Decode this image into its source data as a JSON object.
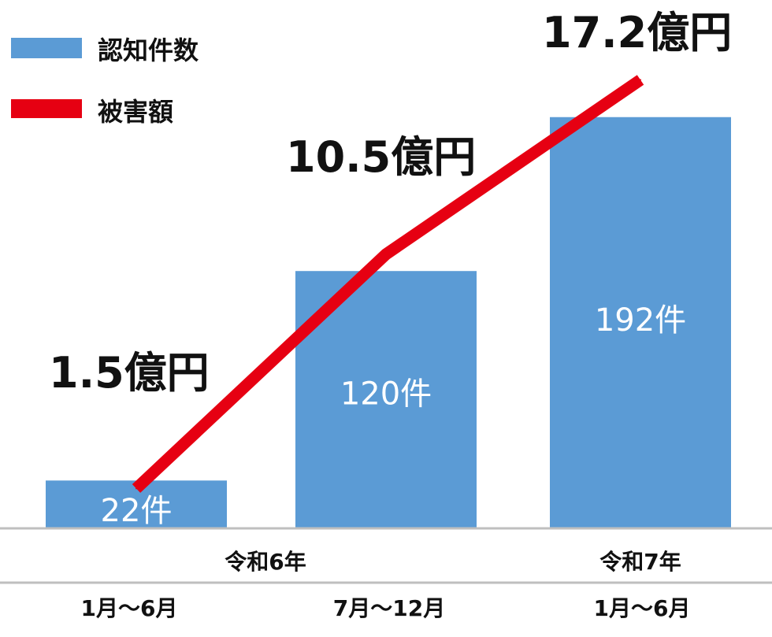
{
  "chart_data": {
    "type": "bar",
    "categories": [
      "1月～6月",
      "7月～12月",
      "1月～6月"
    ],
    "groups": [
      {
        "label": "令和6年",
        "categories": [
          0,
          1
        ]
      },
      {
        "label": "令和7年",
        "categories": [
          2
        ]
      }
    ],
    "series": [
      {
        "name": "認知件数",
        "type": "bar",
        "values": [
          22,
          120,
          192
        ],
        "unit": "件",
        "labels": [
          "22件",
          "120件",
          "192件"
        ],
        "color": "#5b9bd5"
      },
      {
        "name": "被害額",
        "type": "line",
        "values": [
          1.5,
          10.5,
          17.2
        ],
        "unit": "億円",
        "labels": [
          "1.5億円",
          "10.5億円",
          "17.2億円"
        ],
        "color": "#e60012"
      }
    ],
    "ylim_bars": [
      0,
      235
    ],
    "ylim_line": [
      0,
      19.3
    ],
    "grid": false,
    "legend": "top-left",
    "title": "",
    "xlabel": "",
    "ylabel": ""
  }
}
